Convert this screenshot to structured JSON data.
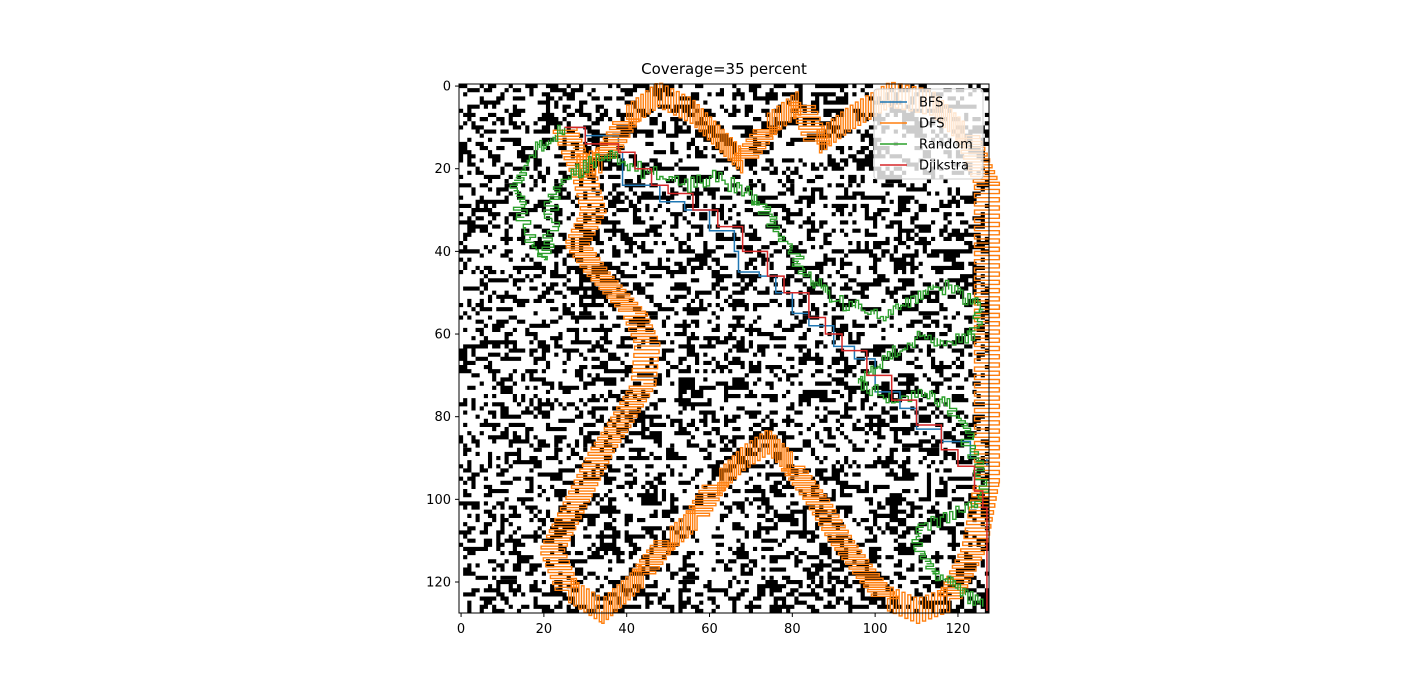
{
  "chart_data": {
    "type": "heatmap",
    "title": "Coverage=35 percent",
    "grid_size": 128,
    "obstacle_coverage_percent": 35,
    "cell_colors": {
      "free": "#ffffff",
      "obstacle": "#000000"
    },
    "xlim": [
      0,
      127
    ],
    "ylim": [
      127,
      0
    ],
    "x_ticks": [
      0,
      20,
      40,
      60,
      80,
      100,
      120
    ],
    "y_ticks": [
      0,
      20,
      40,
      60,
      80,
      100,
      120
    ],
    "grid": false,
    "legend": {
      "placement": "top-right",
      "entries": [
        {
          "name": "BFS",
          "color": "#1f77b4"
        },
        {
          "name": "DFS",
          "color": "#ff7f0e"
        },
        {
          "name": "Random",
          "color": "#2ca02c"
        },
        {
          "name": "Djikstra",
          "color": "#d62728"
        }
      ]
    },
    "series": [
      {
        "name": "BFS",
        "color": "#1f77b4",
        "points": [
          [
            25,
            10
          ],
          [
            30,
            12
          ],
          [
            36,
            12
          ],
          [
            38,
            16
          ],
          [
            39,
            24
          ],
          [
            44,
            24
          ],
          [
            48,
            28
          ],
          [
            54,
            30
          ],
          [
            60,
            35
          ],
          [
            66,
            40
          ],
          [
            67,
            45
          ],
          [
            72,
            46
          ],
          [
            76,
            50
          ],
          [
            80,
            55
          ],
          [
            84,
            58
          ],
          [
            87,
            58
          ],
          [
            90,
            63
          ],
          [
            95,
            66
          ],
          [
            100,
            74
          ],
          [
            106,
            78
          ],
          [
            110,
            83
          ],
          [
            116,
            86
          ],
          [
            122,
            86
          ],
          [
            123,
            90
          ],
          [
            127,
            92
          ]
        ]
      },
      {
        "name": "DFS",
        "color": "#ff7f0e",
        "points": [
          [
            25,
            10
          ],
          [
            27,
            15
          ],
          [
            30,
            22
          ],
          [
            32,
            30
          ],
          [
            28,
            38
          ],
          [
            33,
            45
          ],
          [
            42,
            55
          ],
          [
            45,
            62
          ],
          [
            44,
            72
          ],
          [
            38,
            82
          ],
          [
            34,
            88
          ],
          [
            30,
            96
          ],
          [
            26,
            104
          ],
          [
            22,
            112
          ],
          [
            26,
            122
          ],
          [
            34,
            127
          ],
          [
            44,
            118
          ],
          [
            50,
            110
          ],
          [
            57,
            104
          ],
          [
            62,
            96
          ],
          [
            68,
            90
          ],
          [
            74,
            86
          ],
          [
            80,
            92
          ],
          [
            86,
            100
          ],
          [
            92,
            110
          ],
          [
            98,
            118
          ],
          [
            103,
            124
          ],
          [
            110,
            127
          ],
          [
            118,
            124
          ],
          [
            124,
            112
          ],
          [
            127,
            96
          ],
          [
            127,
            60
          ],
          [
            127,
            24
          ],
          [
            122,
            12
          ],
          [
            114,
            4
          ],
          [
            104,
            2
          ],
          [
            94,
            8
          ],
          [
            86,
            14
          ],
          [
            82,
            4
          ],
          [
            74,
            10
          ],
          [
            68,
            18
          ],
          [
            62,
            12
          ],
          [
            56,
            6
          ],
          [
            48,
            2
          ],
          [
            40,
            8
          ],
          [
            34,
            18
          ],
          [
            28,
            20
          ]
        ]
      },
      {
        "name": "Random",
        "color": "#2ca02c",
        "points": [
          [
            25,
            10
          ],
          [
            20,
            14
          ],
          [
            16,
            18
          ],
          [
            12,
            24
          ],
          [
            15,
            30
          ],
          [
            16,
            36
          ],
          [
            20,
            42
          ],
          [
            22,
            36
          ],
          [
            22,
            28
          ],
          [
            26,
            22
          ],
          [
            32,
            18
          ],
          [
            36,
            16
          ],
          [
            42,
            20
          ],
          [
            48,
            22
          ],
          [
            54,
            24
          ],
          [
            60,
            22
          ],
          [
            66,
            24
          ],
          [
            72,
            28
          ],
          [
            76,
            34
          ],
          [
            80,
            40
          ],
          [
            84,
            46
          ],
          [
            90,
            52
          ],
          [
            96,
            54
          ],
          [
            102,
            56
          ],
          [
            108,
            52
          ],
          [
            114,
            48
          ],
          [
            120,
            50
          ],
          [
            126,
            54
          ],
          [
            124,
            60
          ],
          [
            118,
            62
          ],
          [
            112,
            60
          ],
          [
            106,
            64
          ],
          [
            100,
            68
          ],
          [
            96,
            72
          ],
          [
            104,
            76
          ],
          [
            112,
            74
          ],
          [
            118,
            78
          ],
          [
            122,
            84
          ],
          [
            124,
            90
          ],
          [
            126,
            96
          ],
          [
            124,
            102
          ],
          [
            118,
            104
          ],
          [
            112,
            106
          ],
          [
            110,
            112
          ],
          [
            114,
            118
          ],
          [
            120,
            122
          ],
          [
            126,
            126
          ]
        ]
      },
      {
        "name": "Djikstra",
        "color": "#d62728",
        "points": [
          [
            25,
            10
          ],
          [
            30,
            14
          ],
          [
            34,
            14
          ],
          [
            38,
            16
          ],
          [
            42,
            20
          ],
          [
            46,
            24
          ],
          [
            50,
            26
          ],
          [
            56,
            30
          ],
          [
            62,
            34
          ],
          [
            68,
            40
          ],
          [
            74,
            46
          ],
          [
            78,
            50
          ],
          [
            84,
            56
          ],
          [
            88,
            60
          ],
          [
            92,
            64
          ],
          [
            98,
            70
          ],
          [
            104,
            76
          ],
          [
            110,
            82
          ],
          [
            116,
            88
          ],
          [
            120,
            92
          ],
          [
            124,
            98
          ],
          [
            126,
            102
          ],
          [
            127,
            108
          ],
          [
            127,
            127
          ]
        ]
      }
    ]
  }
}
